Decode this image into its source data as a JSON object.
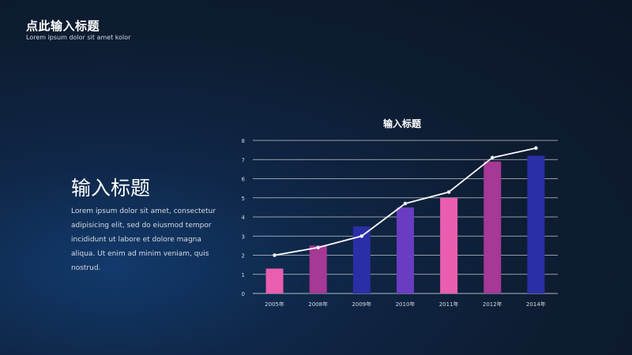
{
  "header": {
    "title": "点此输入标题",
    "subtitle": "Lorem ipsum dolor sit amet kolor"
  },
  "left_block": {
    "title": "输入标题",
    "body": "Lorem ipsum dolor sit amet, consectetur adipisicing elit, sed do eiusmod tempor incididunt ut labore et dolore magna aliqua. Ut enim ad minim veniam, quis nostrud."
  },
  "colors": {
    "background": "#0e1d33",
    "pink": "#ea5eb0",
    "magenta": "#a63896",
    "blue": "#2a2fa6",
    "purple": "#6a3cc2",
    "line": "#ffffff",
    "grid": "#ffffff"
  },
  "chart_data": {
    "type": "bar",
    "title": "输入标题",
    "categories": [
      "2005年",
      "2008年",
      "2009年",
      "2010年",
      "2011年",
      "2012年",
      "2014年"
    ],
    "values": [
      1.3,
      2.5,
      3.5,
      4.5,
      5.0,
      6.9,
      7.2
    ],
    "bar_colors": [
      "#ea5eb0",
      "#a63896",
      "#2a2fa6",
      "#6a3cc2",
      "#ea5eb0",
      "#a63896",
      "#2a2fa6"
    ],
    "line_values": [
      2.0,
      2.4,
      3.0,
      4.7,
      5.3,
      7.1,
      7.6
    ],
    "ylim": [
      0,
      8
    ],
    "yticks": [
      0,
      1,
      2,
      3,
      4,
      5,
      6,
      7,
      8
    ],
    "grid": true,
    "xlabel": "",
    "ylabel": ""
  }
}
